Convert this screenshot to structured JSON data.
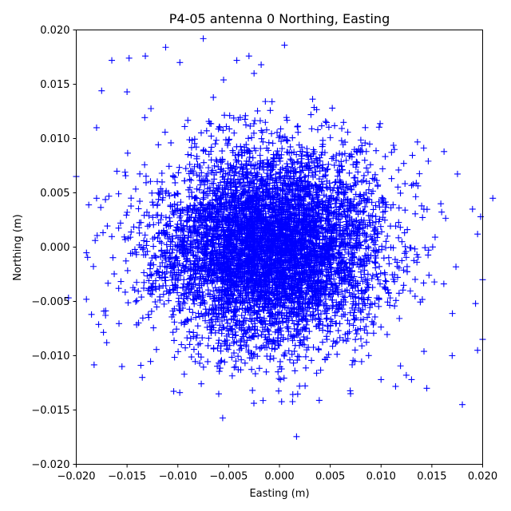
{
  "chart_data": {
    "type": "scatter",
    "title": "P4-05 antenna 0 Northing, Easting",
    "xlabel": "Easting (m)",
    "ylabel": "Northing (m)",
    "xlim": [
      -0.02,
      0.02
    ],
    "ylim": [
      -0.02,
      0.02
    ],
    "xticks": [
      "−0.020",
      "−0.015",
      "−0.010",
      "−0.005",
      "0.000",
      "0.005",
      "0.010",
      "0.015",
      "0.020"
    ],
    "yticks": [
      "−0.020",
      "−0.015",
      "−0.010",
      "−0.005",
      "0.000",
      "0.005",
      "0.010",
      "0.015",
      "0.020"
    ],
    "xtick_values": [
      -0.02,
      -0.015,
      -0.01,
      -0.005,
      0,
      0.005,
      0.01,
      0.015,
      0.02
    ],
    "ytick_values": [
      -0.02,
      -0.015,
      -0.01,
      -0.005,
      0,
      0.005,
      0.01,
      0.015,
      0.02
    ],
    "grid": false,
    "marker": "+",
    "marker_color": "#0000ff",
    "series": [
      {
        "distribution": {
          "center": [
            -0.001,
            0.0
          ],
          "std": [
            0.0055,
            0.0045
          ],
          "count": 6000
        },
        "points": [
          [
            -0.0075,
            0.0192
          ],
          [
            0.0005,
            0.0186
          ],
          [
            -0.0112,
            0.0184
          ],
          [
            -0.0132,
            0.0176
          ],
          [
            -0.0165,
            0.0172
          ],
          [
            -0.0148,
            0.0174
          ],
          [
            -0.0042,
            0.0172
          ],
          [
            -0.0018,
            0.0168
          ],
          [
            -0.0098,
            0.017
          ],
          [
            -0.0175,
            0.0144
          ],
          [
            -0.015,
            0.0143
          ],
          [
            0.021,
            0.0045
          ],
          [
            0.02,
            -0.0085
          ],
          [
            0.018,
            -0.0145
          ],
          [
            0.007,
            -0.0135
          ],
          [
            0.01,
            -0.0122
          ],
          [
            0.0145,
            -0.013
          ],
          [
            0.017,
            -0.01
          ],
          [
            0.0195,
            -0.0095
          ],
          [
            0.0001,
            -0.0122
          ],
          [
            -0.017,
            -0.0088
          ],
          [
            -0.02,
            0.0065
          ],
          [
            -0.0185,
            -0.0062
          ],
          [
            -0.018,
            0.011
          ],
          [
            0.0162,
            0.0088
          ],
          [
            0.0052,
            0.0128
          ],
          [
            0.0031,
            0.0122
          ],
          [
            0.019,
            0.0035
          ],
          [
            0.02,
            -0.003
          ],
          [
            -0.0155,
            -0.011
          ],
          [
            -0.0135,
            -0.012
          ],
          [
            -0.019,
            -0.0048
          ],
          [
            0.013,
            -0.0122
          ],
          [
            -0.0055,
            0.0154
          ],
          [
            -0.018,
            0.0045
          ],
          [
            0.0195,
            0.0012
          ],
          [
            0.0198,
            0.0028
          ],
          [
            0.0193,
            -0.0052
          ],
          [
            -0.003,
            0.0176
          ],
          [
            -0.0025,
            0.016
          ]
        ]
      }
    ]
  }
}
